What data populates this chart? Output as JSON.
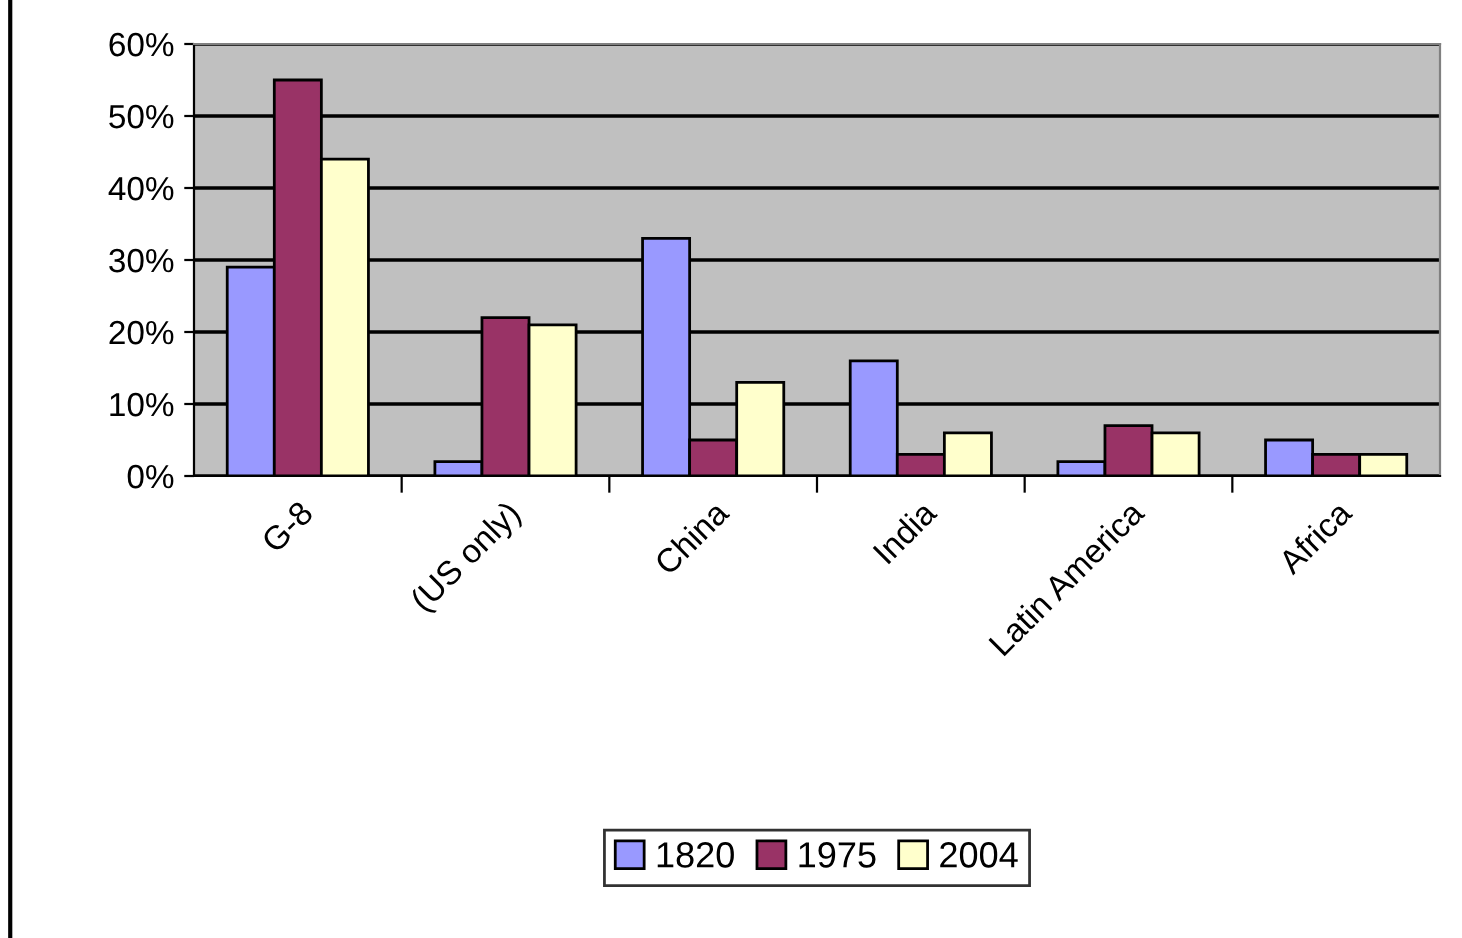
{
  "chart_data": {
    "type": "bar",
    "categories": [
      "G-8",
      "(US only)",
      "China",
      "India",
      "Latin America",
      "Africa"
    ],
    "series": [
      {
        "name": "1820",
        "color": "#9999ff",
        "values": [
          29,
          2,
          33,
          16,
          2,
          5
        ]
      },
      {
        "name": "1975",
        "color": "#993366",
        "values": [
          55,
          22,
          5,
          3,
          7,
          3
        ]
      },
      {
        "name": "2004",
        "color": "#ffffcc",
        "values": [
          44,
          21,
          13,
          6,
          6,
          3
        ]
      }
    ],
    "ylim": [
      0,
      60
    ],
    "yticks": [
      {
        "value": 0,
        "label": "0%"
      },
      {
        "value": 10,
        "label": "10%"
      },
      {
        "value": 20,
        "label": "20%"
      },
      {
        "value": 30,
        "label": "30%"
      },
      {
        "value": 40,
        "label": "40%"
      },
      {
        "value": 50,
        "label": "50%"
      },
      {
        "value": 60,
        "label": "60%"
      }
    ],
    "grid": "y",
    "legend": "bottom"
  }
}
